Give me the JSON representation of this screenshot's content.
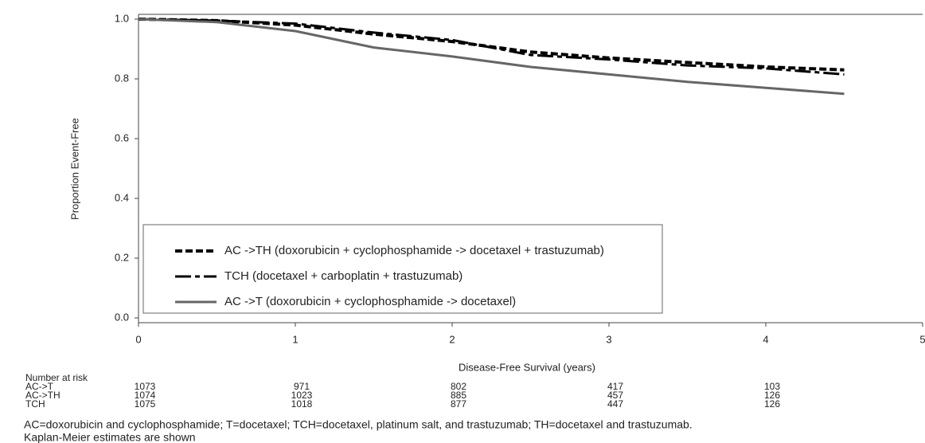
{
  "chart_data": {
    "type": "line",
    "x_label": "Disease-Free Survival (years)",
    "y_label": "Proportion Event-Free",
    "x": [
      0,
      0.5,
      1,
      1.5,
      2,
      2.5,
      3,
      3.5,
      4,
      4.5
    ],
    "series": [
      {
        "name": "AC ->TH (doxorubicin + cyclophosphamide -> docetaxel + trastuzumab)",
        "color": "#000000",
        "style": "dotted",
        "values": [
          1,
          0.995,
          0.98,
          0.95,
          0.925,
          0.89,
          0.87,
          0.855,
          0.84,
          0.83
        ]
      },
      {
        "name": "TCH (docetaxel + carboplatin + trastuzumab)",
        "color": "#000000",
        "style": "dashdot",
        "values": [
          1,
          0.995,
          0.985,
          0.955,
          0.93,
          0.88,
          0.865,
          0.845,
          0.835,
          0.815
        ]
      },
      {
        "name": "AC ->T (doxorubicin + cyclophosphamide -> docetaxel)",
        "color": "#666666",
        "style": "solid",
        "values": [
          1,
          0.99,
          0.96,
          0.905,
          0.875,
          0.84,
          0.815,
          0.79,
          0.77,
          0.75
        ]
      }
    ],
    "xlim": [
      0,
      5
    ],
    "xticks": [
      0,
      1,
      2,
      3,
      4,
      5
    ],
    "ylim": [
      0,
      1
    ],
    "yticks": [
      {
        "value": 0,
        "label": "0.0"
      },
      {
        "value": 0.2,
        "label": "0.2"
      },
      {
        "value": 0.4,
        "label": "0.4"
      },
      {
        "value": 0.6,
        "label": "0.6"
      },
      {
        "value": 0.8,
        "label": "0.8"
      },
      {
        "value": 1,
        "label": "1.0"
      }
    ],
    "grid": false,
    "legend": "bottom-left"
  },
  "risk_table": {
    "title": "Number at risk",
    "rows": [
      {
        "name": "AC->T",
        "values": [
          1073,
          971,
          802,
          417,
          103
        ]
      },
      {
        "name": "AC->TH",
        "values": [
          1074,
          1023,
          885,
          457,
          126
        ]
      },
      {
        "name": "TCH",
        "values": [
          1075,
          1018,
          877,
          447,
          126
        ]
      }
    ]
  },
  "footnotes": [
    "AC=doxorubicin and cyclophosphamide; T=docetaxel; TCH=docetaxel, platinum salt, and trastuzumab; TH=docetaxel and trastuzumab.",
    "Kaplan-Meier estimates are shown"
  ]
}
